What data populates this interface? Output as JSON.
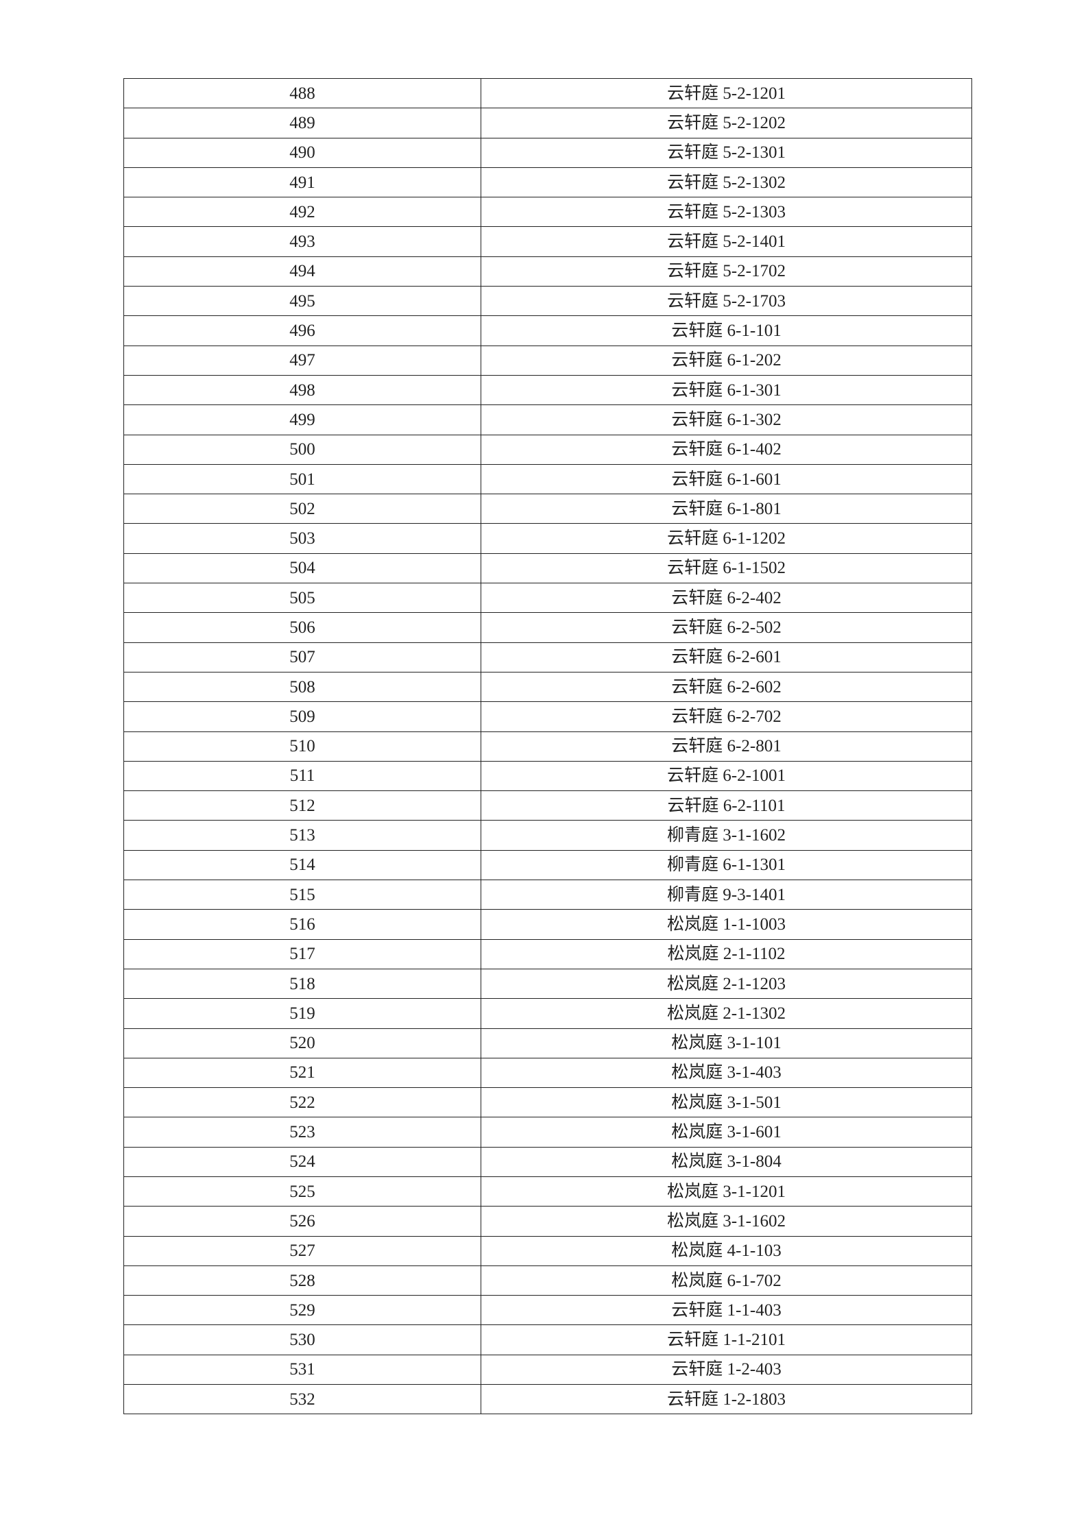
{
  "table": {
    "rows": [
      [
        "488",
        "云轩庭 5-2-1201"
      ],
      [
        "489",
        "云轩庭 5-2-1202"
      ],
      [
        "490",
        "云轩庭 5-2-1301"
      ],
      [
        "491",
        "云轩庭 5-2-1302"
      ],
      [
        "492",
        "云轩庭 5-2-1303"
      ],
      [
        "493",
        "云轩庭 5-2-1401"
      ],
      [
        "494",
        "云轩庭 5-2-1702"
      ],
      [
        "495",
        "云轩庭 5-2-1703"
      ],
      [
        "496",
        "云轩庭 6-1-101"
      ],
      [
        "497",
        "云轩庭 6-1-202"
      ],
      [
        "498",
        "云轩庭 6-1-301"
      ],
      [
        "499",
        "云轩庭 6-1-302"
      ],
      [
        "500",
        "云轩庭 6-1-402"
      ],
      [
        "501",
        "云轩庭 6-1-601"
      ],
      [
        "502",
        "云轩庭 6-1-801"
      ],
      [
        "503",
        "云轩庭 6-1-1202"
      ],
      [
        "504",
        "云轩庭 6-1-1502"
      ],
      [
        "505",
        "云轩庭 6-2-402"
      ],
      [
        "506",
        "云轩庭 6-2-502"
      ],
      [
        "507",
        "云轩庭 6-2-601"
      ],
      [
        "508",
        "云轩庭 6-2-602"
      ],
      [
        "509",
        "云轩庭 6-2-702"
      ],
      [
        "510",
        "云轩庭 6-2-801"
      ],
      [
        "511",
        "云轩庭 6-2-1001"
      ],
      [
        "512",
        "云轩庭 6-2-1101"
      ],
      [
        "513",
        "柳青庭 3-1-1602"
      ],
      [
        "514",
        "柳青庭 6-1-1301"
      ],
      [
        "515",
        "柳青庭 9-3-1401"
      ],
      [
        "516",
        "松岚庭 1-1-1003"
      ],
      [
        "517",
        "松岚庭 2-1-1102"
      ],
      [
        "518",
        "松岚庭 2-1-1203"
      ],
      [
        "519",
        "松岚庭 2-1-1302"
      ],
      [
        "520",
        "松岚庭 3-1-101"
      ],
      [
        "521",
        "松岚庭 3-1-403"
      ],
      [
        "522",
        "松岚庭 3-1-501"
      ],
      [
        "523",
        "松岚庭 3-1-601"
      ],
      [
        "524",
        "松岚庭 3-1-804"
      ],
      [
        "525",
        "松岚庭 3-1-1201"
      ],
      [
        "526",
        "松岚庭 3-1-1602"
      ],
      [
        "527",
        "松岚庭 4-1-103"
      ],
      [
        "528",
        "松岚庭 6-1-702"
      ],
      [
        "529",
        "云轩庭 1-1-403"
      ],
      [
        "530",
        "云轩庭 1-1-2101"
      ],
      [
        "531",
        "云轩庭 1-2-403"
      ],
      [
        "532",
        "云轩庭 1-2-1803"
      ]
    ]
  }
}
